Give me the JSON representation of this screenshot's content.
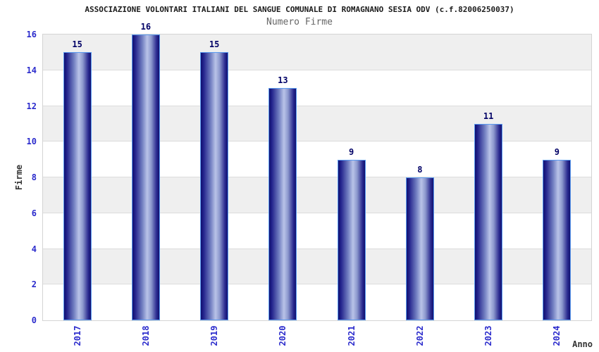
{
  "header": {
    "title": "ASSOCIAZIONE VOLONTARI ITALIANI DEL SANGUE COMUNALE DI ROMAGNANO SESIA ODV (c.f.82006250037)",
    "subtitle": "Numero Firme"
  },
  "chart_data": {
    "type": "bar",
    "categories": [
      "2017",
      "2018",
      "2019",
      "2020",
      "2021",
      "2022",
      "2023",
      "2024"
    ],
    "values": [
      15,
      16,
      15,
      13,
      9,
      8,
      11,
      9
    ],
    "title": "Numero Firme",
    "xlabel": "Anno",
    "ylabel": "Firme",
    "ylim": [
      0,
      16
    ],
    "yticks": [
      0,
      2,
      4,
      6,
      8,
      10,
      12,
      14,
      16
    ],
    "grid": true,
    "alternating_bands": true,
    "legend_position": "none",
    "bar_value_labels": [
      15,
      16,
      15,
      13,
      9,
      8,
      11,
      9
    ]
  },
  "colors": {
    "title_color": "#1b1b1b",
    "subtitle_color": "#666666",
    "axis_title_color": "#333333",
    "tick_label": "#2b2bcc",
    "value_label": "#000066",
    "bar_dark": "#101070",
    "bar_light": "#b9c3e8",
    "bar_border": "#5b9bf0",
    "band_gray": "#efefef",
    "band_white": "#ffffff",
    "gridline": "#dcdcdc",
    "plot_border": "#d4d4d4"
  }
}
